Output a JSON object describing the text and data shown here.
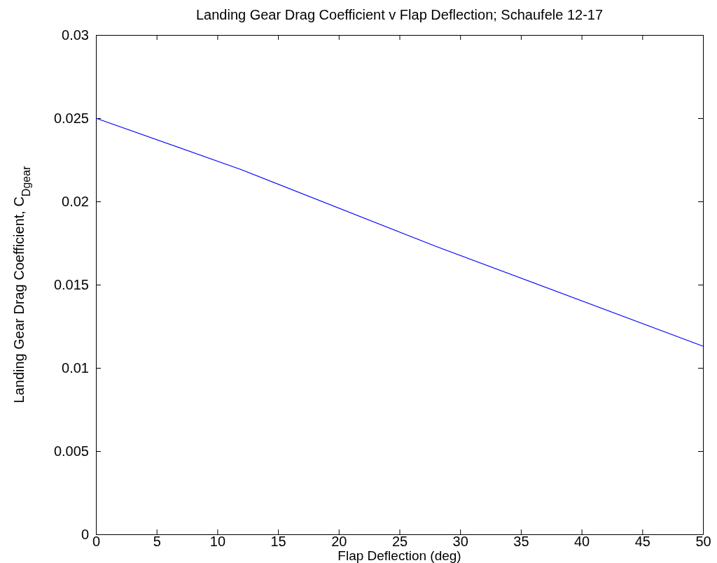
{
  "chart_data": {
    "type": "line",
    "title": "Landing Gear Drag Coefficient v Flap Deflection; Schaufele 12-17",
    "xlabel": "Flap Deflection (deg)",
    "ylabel": "Landing Gear Drag Coefficient, C$_{Dgear}$",
    "x": [
      0,
      12,
      28,
      50
    ],
    "series": [
      {
        "color": "#0000ff",
        "values": [
          0.025,
          0.0219,
          0.0173,
          0.0113
        ]
      }
    ],
    "xlim": [
      0,
      50
    ],
    "xticks": [
      0,
      5,
      10,
      15,
      20,
      25,
      30,
      35,
      40,
      45,
      50
    ],
    "ylim": [
      0,
      0.03
    ],
    "yticks": [
      0,
      0.005,
      0.01,
      0.015,
      0.02,
      0.025,
      0.03
    ],
    "grid": false,
    "marker": "none",
    "line_style": "solid"
  }
}
